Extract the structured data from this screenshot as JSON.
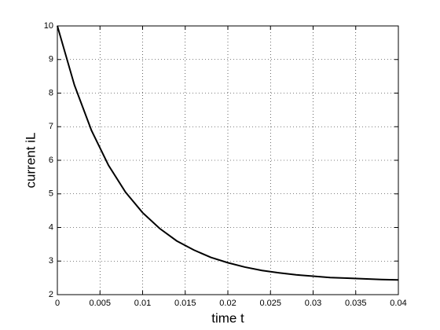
{
  "chart_data": {
    "type": "line",
    "xlabel": "time t",
    "ylabel": "current iL",
    "x": [
      0,
      0.002,
      0.004,
      0.006,
      0.008,
      0.01,
      0.012,
      0.014,
      0.016,
      0.018,
      0.02,
      0.022,
      0.024,
      0.026,
      0.028,
      0.03,
      0.032,
      0.034,
      0.036,
      0.038,
      0.04
    ],
    "series": [
      {
        "color": "#000000",
        "values": [
          10,
          8.24,
          6.89,
          5.85,
          5.05,
          4.44,
          3.97,
          3.6,
          3.33,
          3.11,
          2.95,
          2.82,
          2.72,
          2.65,
          2.59,
          2.55,
          2.51,
          2.49,
          2.47,
          2.45,
          2.44
        ]
      }
    ],
    "xlim": [
      0,
      0.04
    ],
    "xticks": [
      0,
      0.005,
      0.01,
      0.015,
      0.02,
      0.025,
      0.03,
      0.035,
      0.04
    ],
    "ylim": [
      2,
      10
    ],
    "yticks": [
      2,
      3,
      4,
      5,
      6,
      7,
      8,
      9,
      10
    ],
    "grid": true
  }
}
